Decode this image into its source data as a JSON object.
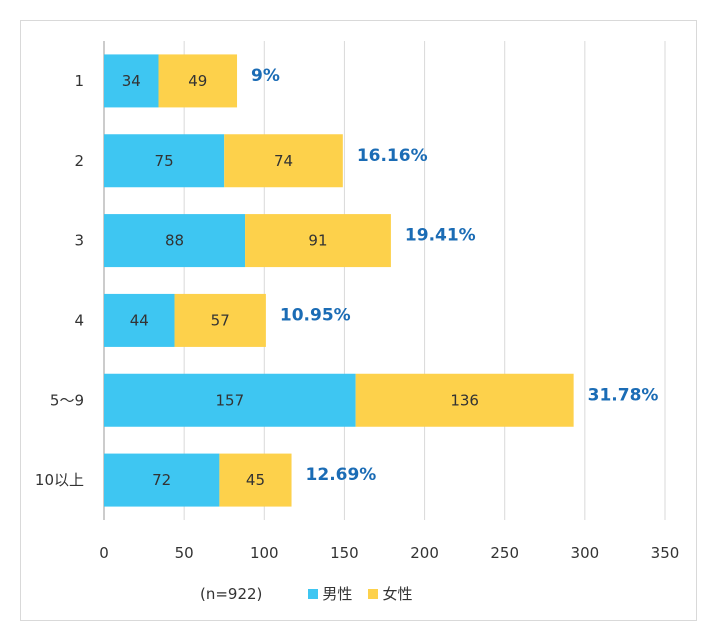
{
  "chart_data": {
    "type": "bar",
    "orientation": "horizontal",
    "stacked": true,
    "categories": [
      "1",
      "2",
      "3",
      "4",
      "5〜9",
      "10以上"
    ],
    "series": [
      {
        "name": "男性",
        "color": "#3ec6f2",
        "values": [
          34,
          75,
          88,
          44,
          157,
          72
        ]
      },
      {
        "name": "女性",
        "color": "#fdd14b",
        "values": [
          49,
          74,
          91,
          57,
          136,
          45
        ]
      }
    ],
    "percent_labels": [
      "9%",
      "16.16%",
      "19.41%",
      "10.95%",
      "31.78%",
      "12.69%"
    ],
    "xlim": [
      0,
      350
    ],
    "xticks": [
      0,
      50,
      100,
      150,
      200,
      250,
      300,
      350
    ],
    "grid": true,
    "sample_note": "(n=922)",
    "legend_position": "bottom"
  },
  "colors": {
    "percent": "#1b6cb5",
    "grid": "#d9d9d9",
    "axis": "#999999"
  }
}
